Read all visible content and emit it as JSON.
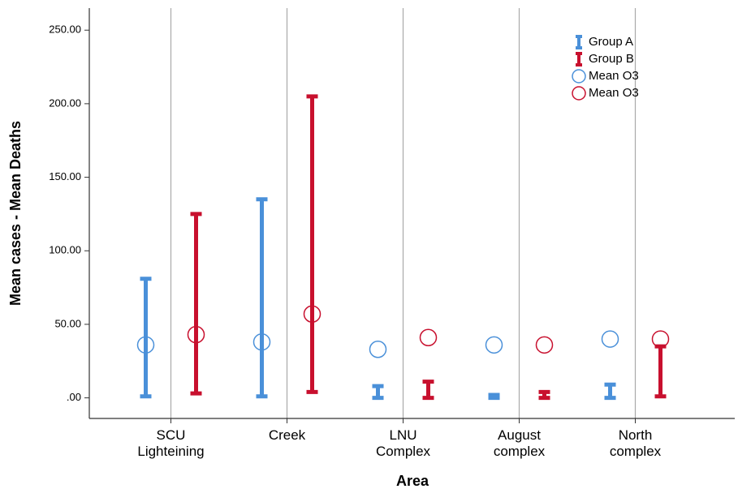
{
  "chart_data": {
    "type": "errorbar",
    "x_label": "Area",
    "y_label": "Mean cases - Mean Deaths",
    "categories": [
      "SCU\nLighteining",
      "Creek",
      "LNU\nComplex",
      "August\ncomplex",
      "North\ncomplex"
    ],
    "ylim": [
      -14,
      265
    ],
    "yticks": [
      {
        "value": 0,
        "label": ".00"
      },
      {
        "value": 50,
        "label": "50.00"
      },
      {
        "value": 100,
        "label": "100.00"
      },
      {
        "value": 150,
        "label": "150.00"
      },
      {
        "value": 200,
        "label": "200.00"
      },
      {
        "value": 250,
        "label": "250.00"
      }
    ],
    "grid": true,
    "legend": "top-right",
    "series": [
      {
        "name": "Group A",
        "color": "#4a90d9",
        "kind": "range",
        "low": [
          1,
          1,
          0,
          0,
          0
        ],
        "high": [
          81,
          135,
          8,
          2,
          9
        ]
      },
      {
        "name": "Group B",
        "color": "#c8102e",
        "kind": "range",
        "low": [
          3,
          4,
          0,
          0,
          1
        ],
        "high": [
          125,
          205,
          11,
          4,
          35
        ]
      },
      {
        "name": "Mean O3",
        "color": "#4a90d9",
        "kind": "mean",
        "values": [
          36,
          38,
          33,
          36,
          40
        ]
      },
      {
        "name": "Mean O3",
        "color": "#c8102e",
        "kind": "mean",
        "values": [
          43,
          57,
          41,
          36,
          40
        ]
      }
    ]
  }
}
